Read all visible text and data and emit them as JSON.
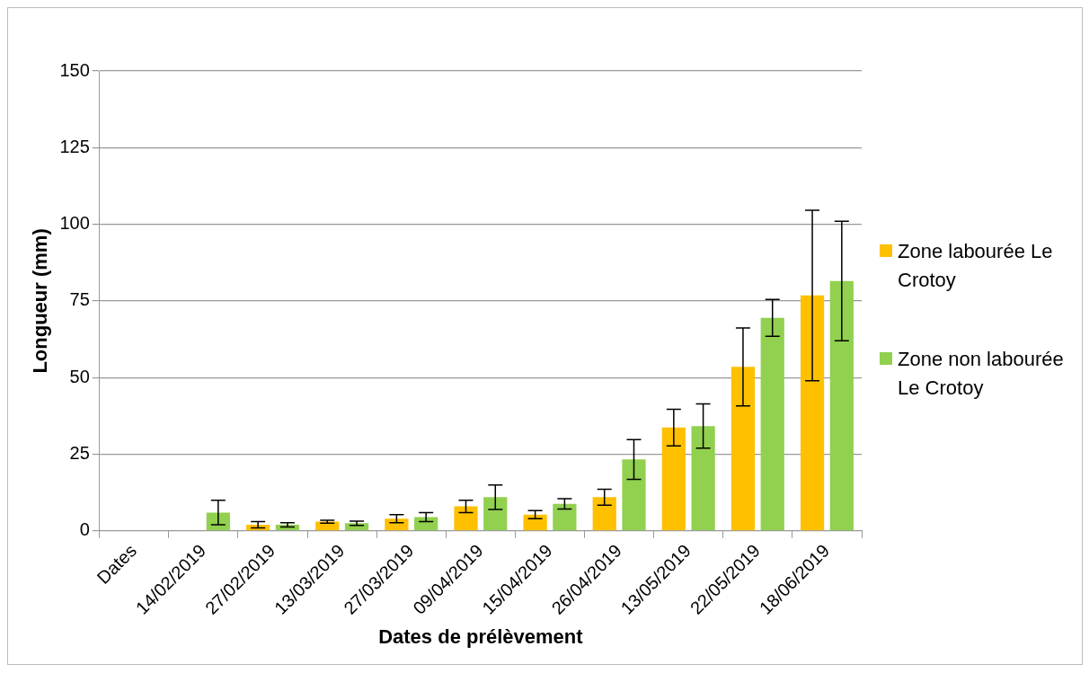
{
  "chart_data": {
    "type": "bar",
    "xlabel": "Dates de prélèvement",
    "ylabel": "Longueur (mm)",
    "categories": [
      "Dates",
      "14/02/2019",
      "27/02/2019",
      "13/03/2019",
      "27/03/2019",
      "09/04/2019",
      "15/04/2019",
      "26/04/2019",
      "13/05/2019",
      "22/05/2019",
      "18/06/2019"
    ],
    "series": [
      {
        "name": "Zone labourée Le Crotoy",
        "color": "#ffc000",
        "values": [
          null,
          null,
          2,
          3,
          4,
          8,
          5.3,
          11,
          33.7,
          53.5,
          76.8
        ],
        "errors": [
          null,
          null,
          1,
          0.5,
          1.3,
          2,
          1.3,
          2.6,
          6,
          12.7,
          27.8
        ]
      },
      {
        "name": "Zone non labourée Le Crotoy",
        "color": "#92d050",
        "values": [
          null,
          6,
          2,
          2.5,
          4.5,
          11,
          8.8,
          23.3,
          34.2,
          69.5,
          81.5
        ],
        "errors": [
          null,
          4,
          0.7,
          0.7,
          1.5,
          4,
          1.7,
          6.5,
          7.2,
          6,
          19.5
        ]
      }
    ],
    "ylim": [
      0,
      150
    ],
    "yticks": [
      0,
      25,
      50,
      75,
      100,
      125,
      150
    ],
    "grid": "y",
    "legend": "right"
  }
}
